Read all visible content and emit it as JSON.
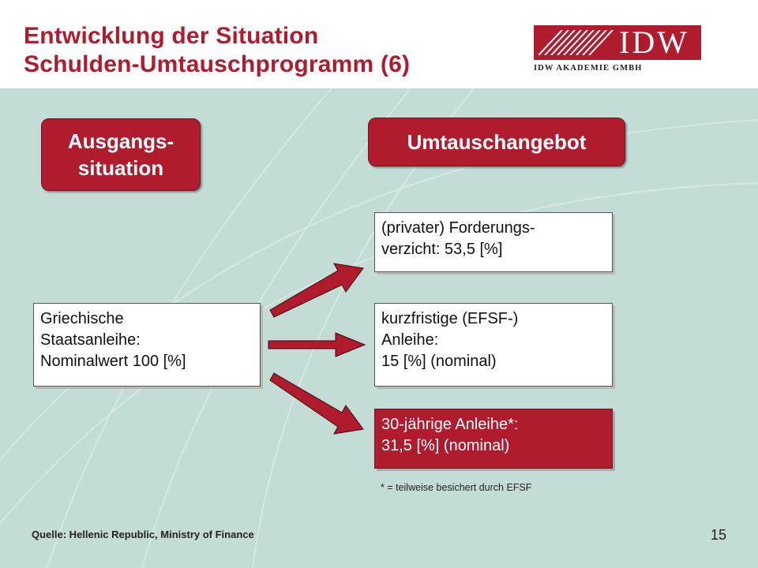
{
  "slide": {
    "title_line1": "Entwicklung der Situation",
    "title_line2": "Schulden-Umtauschprogramm (6)",
    "logo_text": "IDW",
    "logo_subtitle": "IDW AKADEMIE GMBH",
    "brand_color": "#b01c2e",
    "background_color": "#c3dcd6"
  },
  "diagram": {
    "left_header": {
      "line1": "Ausgangs-",
      "line2": "situation"
    },
    "right_header": "Umtauschangebot",
    "source_box": {
      "lines": [
        "Griechische",
        "Staatsanleihe:",
        "Nominalwert 100 [%]"
      ]
    },
    "targets": [
      {
        "lines": [
          "(privater) Forderungs-",
          "verzicht: 53,5 [%]"
        ]
      },
      {
        "lines": [
          "kurzfristige (EFSF-)",
          "Anleihe:",
          "15 [%] (nominal)"
        ]
      },
      {
        "lines": [
          "30-jährige Anleihe*:",
          "31,5 [%] (nominal)"
        ]
      }
    ],
    "footnote": "* = teilweise besichert durch EFSF"
  },
  "footer": {
    "source": "Quelle: Hellenic Republic, Ministry of Finance",
    "page_number": "15"
  }
}
